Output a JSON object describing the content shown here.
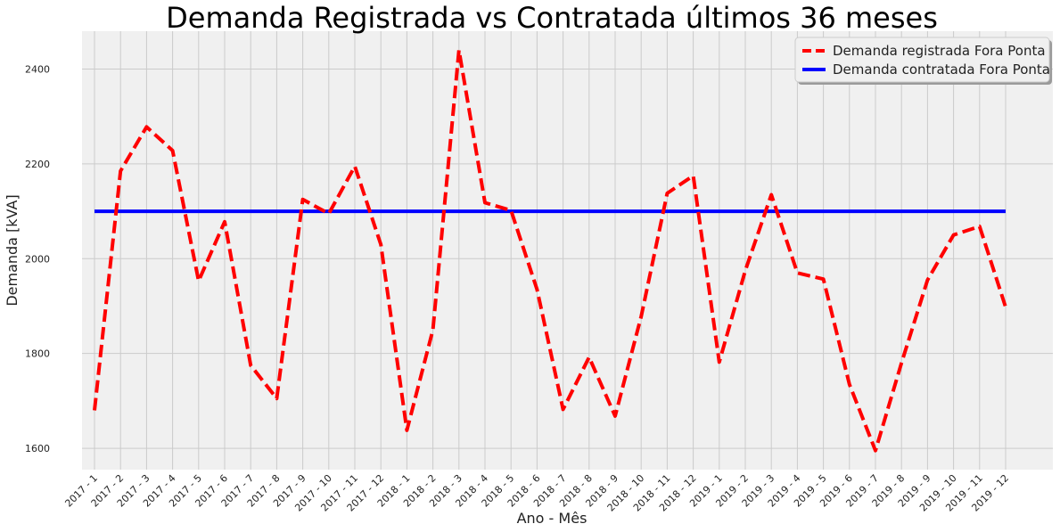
{
  "chart_data": {
    "type": "line",
    "title": "Demanda Registrada vs Contratada últimos 36 meses",
    "xlabel": "Ano - Mês",
    "ylabel": "Demanda [kVA]",
    "ylim": [
      1555,
      2480
    ],
    "yticks": [
      1600,
      1800,
      2000,
      2200,
      2400
    ],
    "grid": true,
    "legend_position": "top-right",
    "categories": [
      "2017 - 1",
      "2017 - 2",
      "2017 - 3",
      "2017 - 4",
      "2017 - 5",
      "2017 - 6",
      "2017 - 7",
      "2017 - 8",
      "2017 - 9",
      "2017 - 10",
      "2017 - 11",
      "2017 - 12",
      "2018 - 1",
      "2018 - 2",
      "2018 - 3",
      "2018 - 4",
      "2018 - 5",
      "2018 - 6",
      "2018 - 7",
      "2018 - 8",
      "2018 - 9",
      "2018 - 10",
      "2018 - 11",
      "2018 - 12",
      "2019 - 1",
      "2019 - 2",
      "2019 - 3",
      "2019 - 4",
      "2019 - 5",
      "2019 - 6",
      "2019 - 7",
      "2019 - 8",
      "2019 - 9",
      "2019 - 10",
      "2019 - 11",
      "2019 - 12"
    ],
    "series": [
      {
        "name": "Demanda registrada Fora Ponta",
        "color": "#ff0000",
        "style": "dashed",
        "values": [
          1680,
          2185,
          2278,
          2228,
          1953,
          2078,
          1775,
          1705,
          2125,
          2095,
          2195,
          2030,
          1638,
          1850,
          2440,
          2118,
          2102,
          1935,
          1682,
          1792,
          1668,
          1878,
          2138,
          2175,
          1782,
          1975,
          2135,
          1970,
          1957,
          1735,
          1595,
          1780,
          1955,
          2050,
          2068,
          1898
        ]
      },
      {
        "name": "Demanda contratada Fora Ponta",
        "color": "#0000ff",
        "style": "solid",
        "values": [
          2100,
          2100,
          2100,
          2100,
          2100,
          2100,
          2100,
          2100,
          2100,
          2100,
          2100,
          2100,
          2100,
          2100,
          2100,
          2100,
          2100,
          2100,
          2100,
          2100,
          2100,
          2100,
          2100,
          2100,
          2100,
          2100,
          2100,
          2100,
          2100,
          2100,
          2100,
          2100,
          2100,
          2100,
          2100,
          2100
        ]
      }
    ]
  },
  "style": {
    "plot_background": "#f0f0f0",
    "grid_color": "#cbcbcb"
  }
}
